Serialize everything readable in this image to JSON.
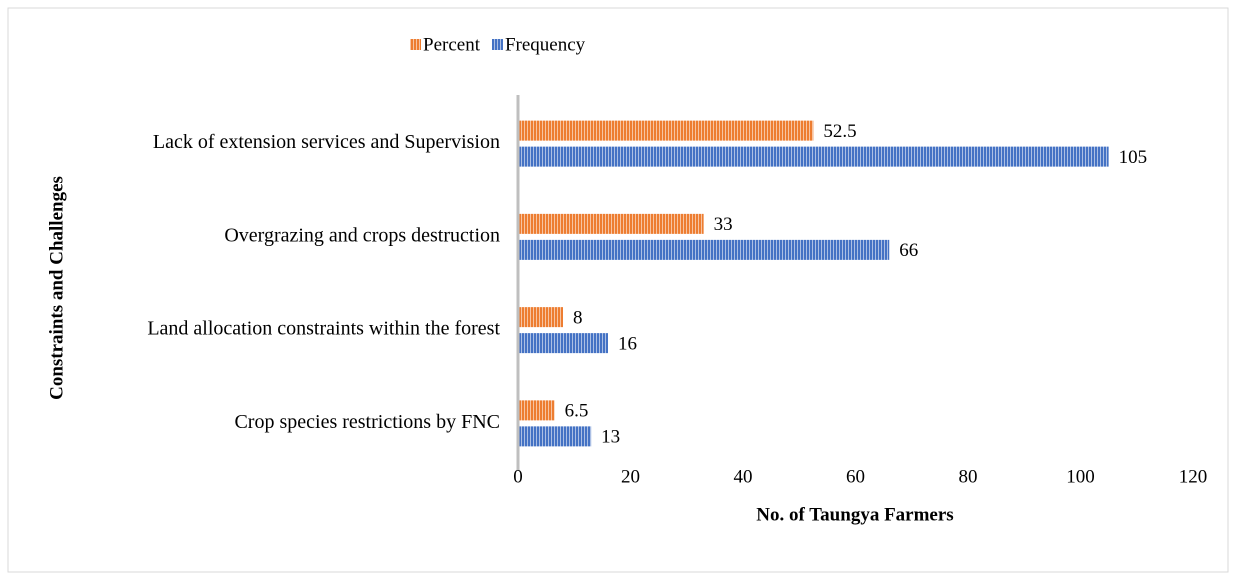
{
  "chart_data": {
    "type": "bar",
    "orientation": "horizontal",
    "xlabel": "No. of Taungya Farmers",
    "ylabel": "Constraints and Challenges",
    "categories": [
      "Lack of extension services and Supervision",
      "Overgrazing and crops destruction",
      "Land allocation constraints within the forest",
      "Crop species restrictions by FNC"
    ],
    "series": [
      {
        "name": "Percent",
        "color": "#ed7d31",
        "values": [
          52.5,
          33,
          8,
          6.5
        ]
      },
      {
        "name": "Frequency",
        "color": "#4472c4",
        "values": [
          105,
          66,
          16,
          13
        ]
      }
    ],
    "xlim": [
      0,
      120
    ],
    "xticks": [
      0,
      20,
      40,
      60,
      80,
      100,
      120
    ],
    "grid": false,
    "legend": "top"
  }
}
